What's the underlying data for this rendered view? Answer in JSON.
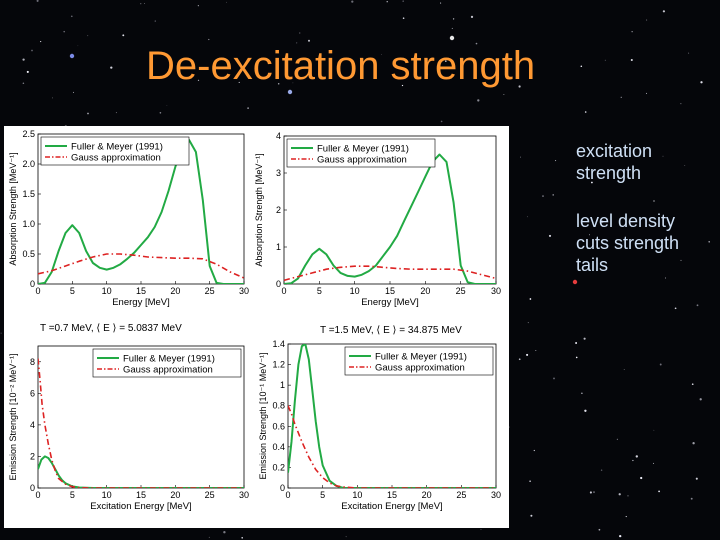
{
  "slide": {
    "title": "De-excitation strength",
    "bullets": [
      "excitation\nstrength",
      "level density\ncuts strength\ntails"
    ]
  },
  "colors": {
    "title": "#ff9933",
    "series_fuller": "#22aa44",
    "series_gauss": "#dd2222",
    "bullet_text": "#cfe0f5"
  },
  "chart_data": [
    {
      "type": "line",
      "xlabel": "Energy [MeV]",
      "ylabel": "Absorption Strength [MeV⁻¹]",
      "xlim": [
        0,
        30
      ],
      "ylim": [
        0,
        2.5
      ],
      "xticks": [
        0,
        5,
        10,
        15,
        20,
        25,
        30
      ],
      "yticks": [
        0,
        0.5,
        1,
        1.5,
        2,
        2.5
      ],
      "ytick_labels": [
        "0",
        "0.5",
        "1.0",
        "1.5",
        "2.0",
        "2.5"
      ],
      "legend": "top-left",
      "series": [
        {
          "name": "Fuller & Meyer (1991)",
          "style": "solid",
          "x": [
            0,
            1,
            2,
            3,
            4,
            5,
            6,
            7,
            8,
            9,
            10,
            11,
            12,
            13,
            14,
            15,
            16,
            17,
            18,
            19,
            20,
            21,
            22,
            23,
            24,
            25,
            26,
            27,
            28,
            29,
            30
          ],
          "y": [
            0,
            0.02,
            0.2,
            0.55,
            0.85,
            0.98,
            0.85,
            0.55,
            0.35,
            0.27,
            0.24,
            0.27,
            0.33,
            0.42,
            0.52,
            0.65,
            0.78,
            0.95,
            1.2,
            1.55,
            1.95,
            2.3,
            2.4,
            2.2,
            1.4,
            0.3,
            0.02,
            0,
            0,
            0,
            0
          ]
        },
        {
          "name": "Gauss approximation",
          "style": "dash-dot",
          "x": [
            0,
            2,
            4,
            6,
            8,
            10,
            12,
            14,
            16,
            18,
            20,
            22,
            24,
            26,
            28,
            30
          ],
          "y": [
            0.17,
            0.22,
            0.3,
            0.38,
            0.45,
            0.5,
            0.5,
            0.48,
            0.45,
            0.44,
            0.43,
            0.43,
            0.42,
            0.33,
            0.2,
            0.1
          ]
        }
      ]
    },
    {
      "type": "line",
      "xlabel": "Energy [MeV]",
      "ylabel": "Absorption Strength [MeV⁻¹]",
      "xlim": [
        0,
        30
      ],
      "ylim": [
        0,
        4
      ],
      "xticks": [
        0,
        5,
        10,
        15,
        20,
        25,
        30
      ],
      "yticks": [
        0,
        1,
        2,
        3,
        4
      ],
      "ytick_labels": [
        "0",
        "1",
        "2",
        "3",
        "4"
      ],
      "legend": "top-left",
      "series": [
        {
          "name": "Fuller & Meyer (1991)",
          "style": "solid",
          "x": [
            0,
            1,
            2,
            3,
            4,
            5,
            6,
            7,
            8,
            9,
            10,
            11,
            12,
            13,
            14,
            15,
            16,
            17,
            18,
            19,
            20,
            21,
            22,
            23,
            24,
            25,
            26,
            27,
            28,
            29,
            30
          ],
          "y": [
            0,
            0.02,
            0.15,
            0.5,
            0.8,
            0.95,
            0.8,
            0.5,
            0.3,
            0.22,
            0.2,
            0.25,
            0.35,
            0.5,
            0.75,
            1.0,
            1.3,
            1.7,
            2.1,
            2.5,
            2.9,
            3.3,
            3.5,
            3.3,
            2.2,
            0.5,
            0.05,
            0,
            0,
            0,
            0
          ]
        },
        {
          "name": "Gauss approximation",
          "style": "dash-dot",
          "x": [
            0,
            2,
            4,
            6,
            8,
            10,
            12,
            14,
            16,
            18,
            20,
            22,
            24,
            26,
            28,
            30
          ],
          "y": [
            0.1,
            0.2,
            0.3,
            0.4,
            0.45,
            0.48,
            0.48,
            0.45,
            0.42,
            0.4,
            0.4,
            0.4,
            0.4,
            0.35,
            0.25,
            0.15
          ]
        }
      ]
    },
    {
      "type": "line",
      "annotation": "T =0.7 MeV,   ⟨ E ⟩ = 5.0837 MeV",
      "xlabel": "Excitation Energy [MeV]",
      "ylabel": "Emission Strength [10⁻² MeV⁻¹]",
      "xlim": [
        0,
        30
      ],
      "ylim": [
        0,
        9
      ],
      "xticks": [
        0,
        5,
        10,
        15,
        20,
        25,
        30
      ],
      "yticks": [
        0,
        2,
        4,
        6,
        8
      ],
      "ytick_labels": [
        "0",
        "2",
        "4",
        "6",
        "8"
      ],
      "legend": "top-right",
      "series": [
        {
          "name": "Fuller & Meyer (1991)",
          "style": "solid",
          "x": [
            0,
            0.5,
            1,
            1.5,
            2,
            2.5,
            3,
            3.5,
            4,
            5,
            6,
            8,
            10,
            15,
            20,
            25,
            30
          ],
          "y": [
            1.2,
            1.8,
            2.0,
            1.9,
            1.6,
            1.2,
            0.8,
            0.5,
            0.3,
            0.1,
            0.03,
            0,
            0,
            0,
            0,
            0,
            0
          ]
        },
        {
          "name": "Gauss approximation",
          "style": "dash-dot",
          "x": [
            0,
            0.3,
            0.6,
            1,
            1.5,
            2,
            2.5,
            3,
            4,
            5,
            6,
            8,
            10,
            15,
            20,
            25,
            30
          ],
          "y": [
            8.2,
            6.8,
            5.3,
            4.0,
            2.8,
            1.8,
            1.1,
            0.6,
            0.25,
            0.08,
            0.02,
            0,
            0,
            0,
            0,
            0,
            0
          ]
        }
      ]
    },
    {
      "type": "line",
      "annotation": "T =1.5 MeV,   ⟨ E ⟩ = 34.875 MeV",
      "xlabel": "Excitation Energy [MeV]",
      "ylabel": "Emission Strength [10⁻¹ MeV⁻¹]",
      "xlim": [
        0,
        30
      ],
      "ylim": [
        0,
        1.4
      ],
      "xticks": [
        0,
        5,
        10,
        15,
        20,
        25,
        30
      ],
      "yticks": [
        0,
        0.2,
        0.4,
        0.6,
        0.8,
        1.0,
        1.2,
        1.4
      ],
      "ytick_labels": [
        "0",
        "0.2",
        "0.4",
        "0.6",
        "0.8",
        "1",
        "1.2",
        "1.4"
      ],
      "legend": "top-right",
      "series": [
        {
          "name": "Fuller & Meyer (1991)",
          "style": "solid",
          "x": [
            0,
            0.5,
            1,
            1.5,
            2,
            2.5,
            3,
            3.5,
            4,
            4.5,
            5,
            6,
            7,
            8,
            10,
            15,
            20,
            25,
            30
          ],
          "y": [
            0.15,
            0.45,
            0.85,
            1.2,
            1.38,
            1.4,
            1.25,
            0.95,
            0.65,
            0.4,
            0.22,
            0.07,
            0.02,
            0,
            0,
            0,
            0,
            0,
            0
          ]
        },
        {
          "name": "Gauss approximation",
          "style": "dash-dot",
          "x": [
            0,
            0.5,
            1,
            2,
            3,
            4,
            5,
            6,
            7,
            8,
            10,
            15,
            20,
            25,
            30
          ],
          "y": [
            0.8,
            0.72,
            0.62,
            0.45,
            0.3,
            0.18,
            0.1,
            0.05,
            0.02,
            0.01,
            0,
            0,
            0,
            0,
            0
          ]
        }
      ]
    }
  ]
}
